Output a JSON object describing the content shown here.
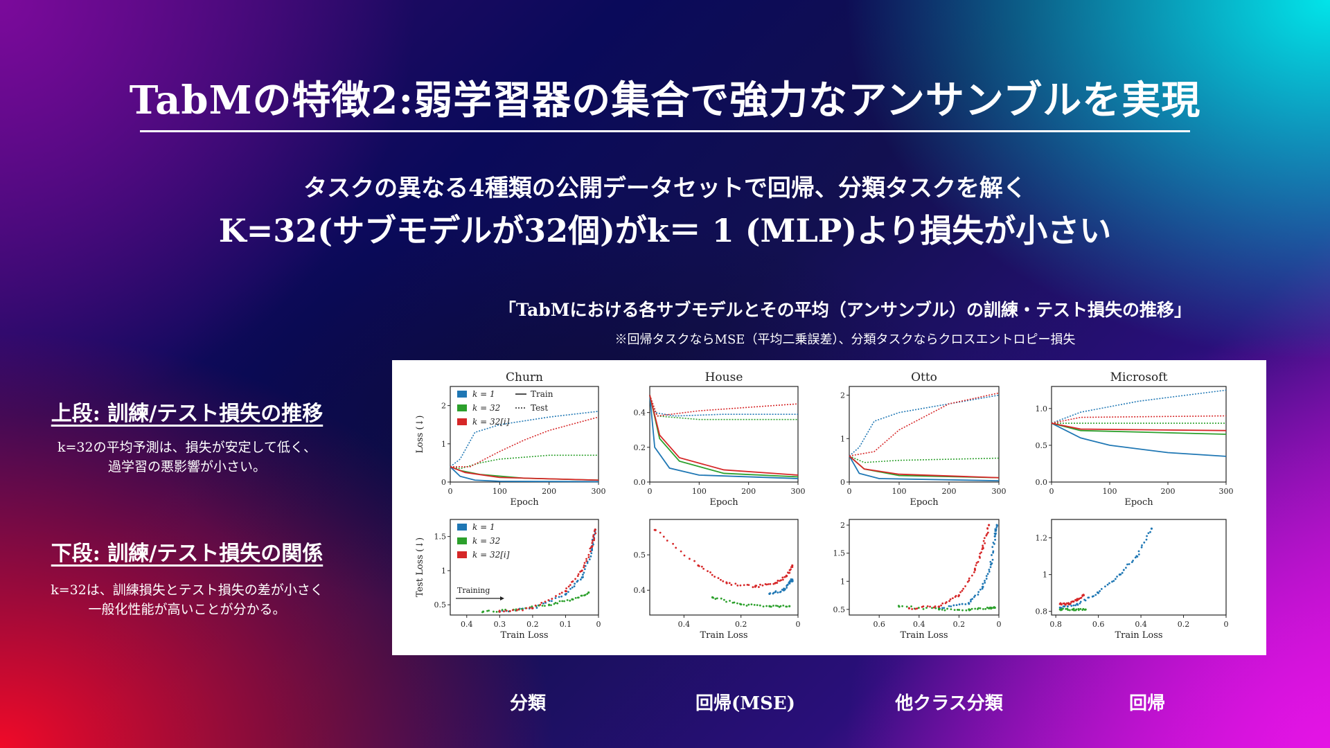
{
  "slide": {
    "title": "TabMの特徴2:弱学習器の集合で強力なアンサンブルを実現",
    "subtitle1": "タスクの異なる4種類の公開データセットで回帰、分類タスクを解く",
    "subtitle2": "K=32(サブモデルが32個)がk＝ 1 (MLP)より損失が小さい",
    "figure_caption": "「TabMにおける各サブモデルとその平均（アンサンブル）の訓練・テスト損失の推移」",
    "figure_note": "※回帰タスクならMSE（平均二乗誤差）、分類タスクならクロスエントロピー損失",
    "left": {
      "top_heading": "上段: 訓練/テスト損失の推移",
      "top_text_line1": "k=32の平均予測は、損失が安定して低く、",
      "top_text_line2": "過学習の悪影響が小さい。",
      "bottom_heading": "下段: 訓練/テスト損失の関係",
      "bottom_text_line1": "k=32は、訓練損失とテスト損失の差が小さく",
      "bottom_text_line2": "一般化性能が高いことが分かる。"
    },
    "task_labels": [
      "分類",
      "回帰(MSE)",
      "他クラス分類",
      "回帰"
    ]
  },
  "chart_data": [
    {
      "type": "line",
      "title": "Churn",
      "xlabel": "Epoch",
      "ylabel": "Loss (↓)",
      "xlim": [
        0,
        300
      ],
      "ylim": [
        0,
        2.5
      ],
      "xticks": [
        0,
        100,
        200,
        300
      ],
      "yticks": [
        0.0,
        1.0,
        2.0
      ],
      "legend": {
        "position": "top-left",
        "series": [
          "k = 1",
          "k = 32",
          "k = 32[i]"
        ],
        "styles": [
          "Train",
          "Test"
        ]
      },
      "series": [
        {
          "name": "k = 1",
          "color": "#1f77b4",
          "train": [
            [
              0,
              0.4
            ],
            [
              20,
              0.15
            ],
            [
              50,
              0.05
            ],
            [
              100,
              0.02
            ],
            [
              300,
              0.01
            ]
          ],
          "test": [
            [
              0,
              0.4
            ],
            [
              20,
              0.6
            ],
            [
              50,
              1.3
            ],
            [
              100,
              1.5
            ],
            [
              150,
              1.6
            ],
            [
              200,
              1.7
            ],
            [
              300,
              1.85
            ]
          ]
        },
        {
          "name": "k = 32",
          "color": "#2ca02c",
          "train": [
            [
              0,
              0.4
            ],
            [
              20,
              0.3
            ],
            [
              60,
              0.2
            ],
            [
              150,
              0.1
            ],
            [
              300,
              0.05
            ]
          ],
          "test": [
            [
              0,
              0.4
            ],
            [
              20,
              0.35
            ],
            [
              60,
              0.5
            ],
            [
              100,
              0.6
            ],
            [
              200,
              0.7
            ],
            [
              300,
              0.7
            ]
          ]
        },
        {
          "name": "k = 32[i]",
          "color": "#d62728",
          "train": [
            [
              0,
              0.4
            ],
            [
              30,
              0.25
            ],
            [
              100,
              0.12
            ],
            [
              300,
              0.05
            ]
          ],
          "test": [
            [
              0,
              0.4
            ],
            [
              40,
              0.4
            ],
            [
              100,
              0.8
            ],
            [
              150,
              1.1
            ],
            [
              200,
              1.35
            ],
            [
              300,
              1.7
            ]
          ]
        }
      ]
    },
    {
      "type": "line",
      "title": "House",
      "xlabel": "Epoch",
      "xlim": [
        0,
        300
      ],
      "ylim": [
        0,
        0.55
      ],
      "xticks": [
        0,
        100,
        200,
        300
      ],
      "yticks": [
        0.0,
        0.2,
        0.4
      ],
      "series": [
        {
          "name": "k = 1",
          "color": "#1f77b4",
          "train": [
            [
              0,
              0.5
            ],
            [
              10,
              0.2
            ],
            [
              40,
              0.08
            ],
            [
              100,
              0.04
            ],
            [
              300,
              0.02
            ]
          ],
          "test": [
            [
              0,
              0.5
            ],
            [
              10,
              0.4
            ],
            [
              50,
              0.38
            ],
            [
              150,
              0.39
            ],
            [
              300,
              0.39
            ]
          ]
        },
        {
          "name": "k = 32",
          "color": "#2ca02c",
          "train": [
            [
              0,
              0.5
            ],
            [
              20,
              0.25
            ],
            [
              60,
              0.12
            ],
            [
              150,
              0.05
            ],
            [
              300,
              0.03
            ]
          ],
          "test": [
            [
              0,
              0.5
            ],
            [
              15,
              0.38
            ],
            [
              100,
              0.36
            ],
            [
              300,
              0.36
            ]
          ]
        },
        {
          "name": "k = 32[i]",
          "color": "#d62728",
          "train": [
            [
              0,
              0.5
            ],
            [
              20,
              0.27
            ],
            [
              60,
              0.14
            ],
            [
              150,
              0.07
            ],
            [
              300,
              0.04
            ]
          ],
          "test": [
            [
              0,
              0.5
            ],
            [
              15,
              0.38
            ],
            [
              100,
              0.41
            ],
            [
              200,
              0.43
            ],
            [
              300,
              0.45
            ]
          ]
        }
      ]
    },
    {
      "type": "line",
      "title": "Otto",
      "xlabel": "Epoch",
      "xlim": [
        0,
        300
      ],
      "ylim": [
        0,
        2.2
      ],
      "xticks": [
        0,
        100,
        200,
        300
      ],
      "yticks": [
        0,
        1,
        2
      ],
      "series": [
        {
          "name": "k = 1",
          "color": "#1f77b4",
          "train": [
            [
              0,
              0.6
            ],
            [
              20,
              0.2
            ],
            [
              60,
              0.08
            ],
            [
              300,
              0.03
            ]
          ],
          "test": [
            [
              0,
              0.6
            ],
            [
              20,
              0.8
            ],
            [
              50,
              1.4
            ],
            [
              100,
              1.6
            ],
            [
              200,
              1.8
            ],
            [
              300,
              2.0
            ]
          ]
        },
        {
          "name": "k = 32",
          "color": "#2ca02c",
          "train": [
            [
              0,
              0.6
            ],
            [
              30,
              0.3
            ],
            [
              100,
              0.15
            ],
            [
              300,
              0.1
            ]
          ],
          "test": [
            [
              0,
              0.6
            ],
            [
              30,
              0.45
            ],
            [
              100,
              0.5
            ],
            [
              300,
              0.55
            ]
          ]
        },
        {
          "name": "k = 32[i]",
          "color": "#d62728",
          "train": [
            [
              0,
              0.6
            ],
            [
              30,
              0.3
            ],
            [
              100,
              0.18
            ],
            [
              300,
              0.1
            ]
          ],
          "test": [
            [
              0,
              0.6
            ],
            [
              50,
              0.7
            ],
            [
              100,
              1.2
            ],
            [
              200,
              1.8
            ],
            [
              300,
              2.05
            ]
          ]
        }
      ]
    },
    {
      "type": "line",
      "title": "Microsoft",
      "xlabel": "Epoch",
      "xlim": [
        0,
        300
      ],
      "ylim": [
        0,
        1.3
      ],
      "xticks": [
        0,
        100,
        200,
        300
      ],
      "yticks": [
        0.0,
        0.5,
        1.0
      ],
      "series": [
        {
          "name": "k = 1",
          "color": "#1f77b4",
          "train": [
            [
              0,
              0.8
            ],
            [
              50,
              0.6
            ],
            [
              100,
              0.5
            ],
            [
              200,
              0.4
            ],
            [
              300,
              0.35
            ]
          ],
          "test": [
            [
              0,
              0.8
            ],
            [
              50,
              0.95
            ],
            [
              150,
              1.1
            ],
            [
              300,
              1.25
            ]
          ]
        },
        {
          "name": "k = 32",
          "color": "#2ca02c",
          "train": [
            [
              0,
              0.8
            ],
            [
              50,
              0.7
            ],
            [
              300,
              0.65
            ]
          ],
          "test": [
            [
              0,
              0.8
            ],
            [
              300,
              0.8
            ]
          ]
        },
        {
          "name": "k = 32[i]",
          "color": "#d62728",
          "train": [
            [
              0,
              0.8
            ],
            [
              50,
              0.72
            ],
            [
              300,
              0.7
            ]
          ],
          "test": [
            [
              0,
              0.8
            ],
            [
              50,
              0.88
            ],
            [
              300,
              0.9
            ]
          ]
        }
      ]
    },
    {
      "type": "scatter",
      "title": "",
      "xlabel": "Train Loss",
      "ylabel": "Test Loss (↓)",
      "xlim": [
        0.45,
        0.0
      ],
      "ylim": [
        0.35,
        1.75
      ],
      "xticks": [
        0.4,
        0.3,
        0.2,
        0.1,
        0.0
      ],
      "yticks": [
        0.5,
        1.0,
        1.5
      ],
      "annotation": "Training",
      "legend": {
        "position": "top-left",
        "series": [
          "k = 1",
          "k = 32",
          "k = 32[i]"
        ]
      },
      "series": [
        {
          "name": "k = 1",
          "color": "#1f77b4",
          "points": [
            [
              0.3,
              0.4
            ],
            [
              0.2,
              0.45
            ],
            [
              0.1,
              0.65
            ],
            [
              0.05,
              0.9
            ],
            [
              0.02,
              1.3
            ],
            [
              0.01,
              1.6
            ]
          ]
        },
        {
          "name": "k = 32",
          "color": "#2ca02c",
          "points": [
            [
              0.35,
              0.4
            ],
            [
              0.25,
              0.42
            ],
            [
              0.15,
              0.5
            ],
            [
              0.08,
              0.58
            ],
            [
              0.03,
              0.68
            ]
          ]
        },
        {
          "name": "k = 32[i]",
          "color": "#d62728",
          "points": [
            [
              0.3,
              0.4
            ],
            [
              0.2,
              0.45
            ],
            [
              0.1,
              0.7
            ],
            [
              0.05,
              1.0
            ],
            [
              0.02,
              1.35
            ],
            [
              0.01,
              1.6
            ]
          ]
        }
      ]
    },
    {
      "type": "scatter",
      "title": "",
      "xlabel": "Train Loss",
      "xlim": [
        0.52,
        0.0
      ],
      "ylim": [
        0.33,
        0.6
      ],
      "xticks": [
        0.4,
        0.2,
        0.0
      ],
      "yticks": [
        0.4,
        0.5
      ],
      "series": [
        {
          "name": "k = 1",
          "color": "#1f77b4",
          "points": [
            [
              0.1,
              0.39
            ],
            [
              0.05,
              0.4
            ],
            [
              0.03,
              0.42
            ],
            [
              0.02,
              0.43
            ]
          ]
        },
        {
          "name": "k = 32",
          "color": "#2ca02c",
          "points": [
            [
              0.3,
              0.38
            ],
            [
              0.2,
              0.36
            ],
            [
              0.1,
              0.355
            ],
            [
              0.03,
              0.355
            ]
          ]
        },
        {
          "name": "k = 32[i]",
          "color": "#d62728",
          "points": [
            [
              0.5,
              0.57
            ],
            [
              0.35,
              0.47
            ],
            [
              0.25,
              0.42
            ],
            [
              0.15,
              0.41
            ],
            [
              0.08,
              0.42
            ],
            [
              0.04,
              0.44
            ],
            [
              0.02,
              0.47
            ]
          ]
        }
      ]
    },
    {
      "type": "scatter",
      "title": "",
      "xlabel": "Train Loss",
      "xlim": [
        0.75,
        0.0
      ],
      "ylim": [
        0.4,
        2.1
      ],
      "xticks": [
        0.6,
        0.4,
        0.2,
        0.0
      ],
      "yticks": [
        0.5,
        1.0,
        1.5,
        2.0
      ],
      "series": [
        {
          "name": "k = 1",
          "color": "#1f77b4",
          "points": [
            [
              0.3,
              0.52
            ],
            [
              0.15,
              0.6
            ],
            [
              0.08,
              0.9
            ],
            [
              0.04,
              1.3
            ],
            [
              0.02,
              1.8
            ],
            [
              0.01,
              2.0
            ]
          ]
        },
        {
          "name": "k = 32",
          "color": "#2ca02c",
          "points": [
            [
              0.5,
              0.55
            ],
            [
              0.3,
              0.5
            ],
            [
              0.15,
              0.5
            ],
            [
              0.05,
              0.52
            ],
            [
              0.02,
              0.53
            ]
          ]
        },
        {
          "name": "k = 32[i]",
          "color": "#d62728",
          "points": [
            [
              0.45,
              0.52
            ],
            [
              0.3,
              0.55
            ],
            [
              0.2,
              0.75
            ],
            [
              0.12,
              1.2
            ],
            [
              0.08,
              1.6
            ],
            [
              0.05,
              2.0
            ]
          ]
        }
      ]
    },
    {
      "type": "scatter",
      "title": "",
      "xlabel": "Train Loss",
      "xlim": [
        0.82,
        0.0
      ],
      "ylim": [
        0.78,
        1.3
      ],
      "xticks": [
        0.8,
        0.6,
        0.4,
        0.2,
        0.0
      ],
      "yticks": [
        0.8,
        1.0,
        1.2
      ],
      "series": [
        {
          "name": "k = 1",
          "color": "#1f77b4",
          "points": [
            [
              0.78,
              0.82
            ],
            [
              0.7,
              0.84
            ],
            [
              0.6,
              0.9
            ],
            [
              0.5,
              1.0
            ],
            [
              0.42,
              1.1
            ],
            [
              0.35,
              1.25
            ]
          ]
        },
        {
          "name": "k = 32",
          "color": "#2ca02c",
          "points": [
            [
              0.78,
              0.81
            ],
            [
              0.72,
              0.81
            ],
            [
              0.66,
              0.81
            ]
          ]
        },
        {
          "name": "k = 32[i]",
          "color": "#d62728",
          "points": [
            [
              0.78,
              0.84
            ],
            [
              0.74,
              0.84
            ],
            [
              0.7,
              0.86
            ],
            [
              0.67,
              0.89
            ]
          ]
        }
      ]
    }
  ]
}
